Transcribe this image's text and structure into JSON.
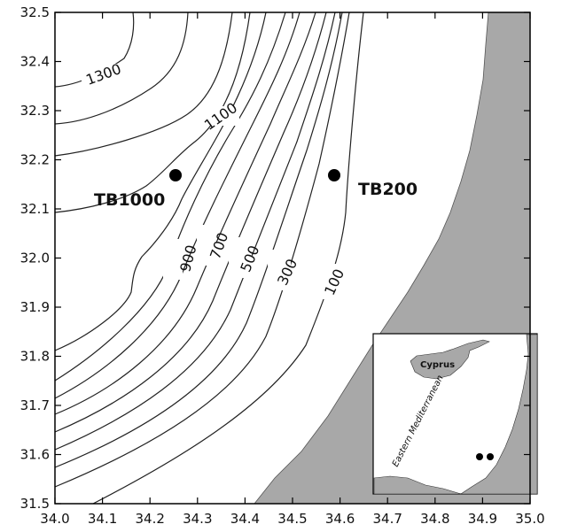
{
  "map": {
    "x_ticks": [
      "34.0",
      "34.1",
      "34.2",
      "34.3",
      "34.4",
      "34.5",
      "34.6",
      "34.7",
      "34.8",
      "34.9",
      "35.0"
    ],
    "y_ticks": [
      "32.5",
      "32.4",
      "32.3",
      "32.2",
      "32.1",
      "32.0",
      "31.9",
      "31.8",
      "31.7",
      "31.6",
      "31.5"
    ],
    "xlim": [
      34.0,
      35.0
    ],
    "ylim": [
      31.5,
      32.5
    ],
    "contour_labels": [
      "1300",
      "1100",
      "900",
      "700",
      "500",
      "300",
      "100"
    ],
    "stations": [
      {
        "name": "TB1000",
        "lon": 34.25,
        "lat": 32.165
      },
      {
        "name": "TB200",
        "lon": 34.575,
        "lat": 32.165
      }
    ],
    "inset": {
      "island_label": "Cyprus",
      "sea_label": "Eastern Mediterranean"
    },
    "colors": {
      "land": "#a8a8a8",
      "sea": "#ffffff",
      "contour": "#222222",
      "station": "#000000"
    }
  }
}
